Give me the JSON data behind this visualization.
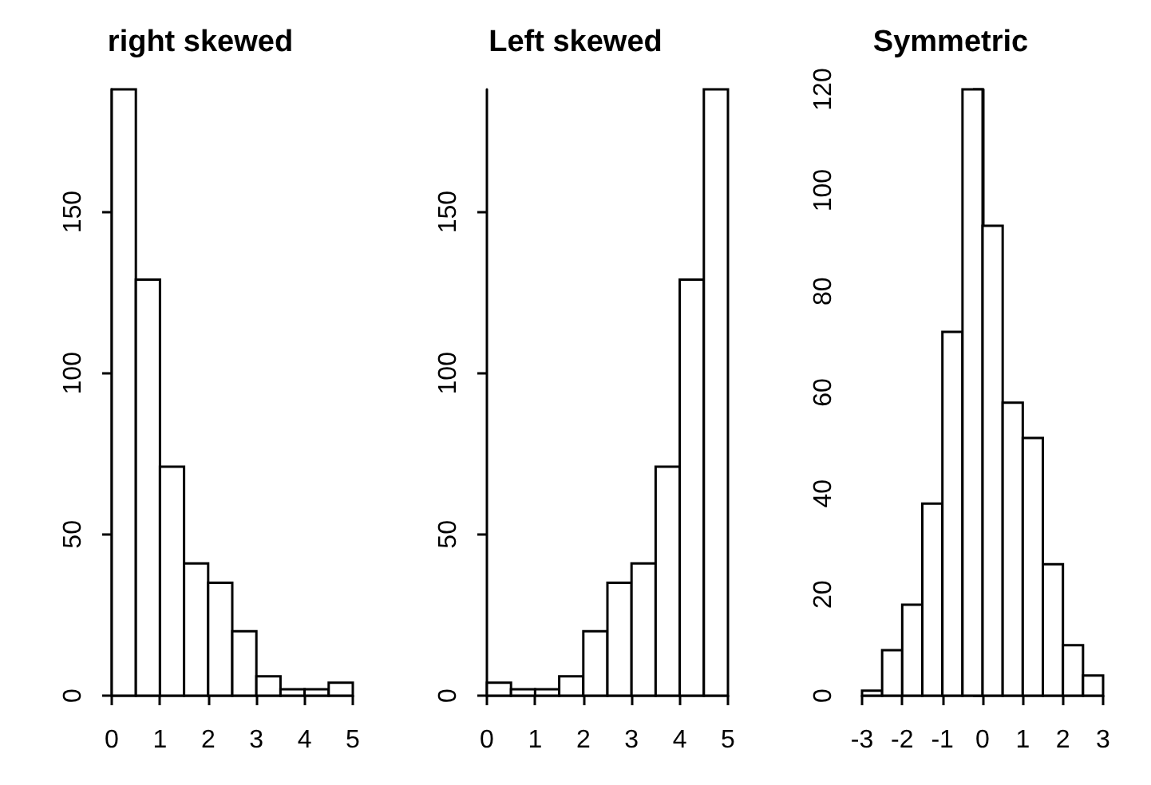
{
  "chart_data": [
    {
      "type": "histogram",
      "title": "right skewed",
      "color": "#ffffff",
      "bins": [
        0,
        0.5,
        1,
        1.5,
        2,
        2.5,
        3,
        3.5,
        4,
        4.5,
        5
      ],
      "values": [
        188,
        129,
        71,
        41,
        35,
        20,
        6,
        2,
        2,
        4
      ],
      "xlim": [
        0,
        5
      ],
      "ylim": [
        0,
        188
      ],
      "xticks": [
        0,
        1,
        2,
        3,
        4,
        5
      ],
      "yticks": [
        0,
        50,
        100,
        150
      ]
    },
    {
      "type": "histogram",
      "title": "Left skewed",
      "color": "#ffffff",
      "bins": [
        0,
        0.5,
        1,
        1.5,
        2,
        2.5,
        3,
        3.5,
        4,
        4.5,
        5
      ],
      "values": [
        4,
        2,
        2,
        6,
        20,
        35,
        41,
        71,
        129,
        188
      ],
      "xlim": [
        0,
        5
      ],
      "ylim": [
        0,
        188
      ],
      "xticks": [
        0,
        1,
        2,
        3,
        4,
        5
      ],
      "yticks": [
        0,
        50,
        100,
        150
      ]
    },
    {
      "type": "histogram",
      "title": "Symmetric",
      "color": "#ffffff",
      "bins": [
        -3,
        -2.5,
        -2,
        -1.5,
        -1,
        -0.5,
        0,
        0.5,
        1,
        1.5,
        2,
        2.5,
        3
      ],
      "values": [
        1,
        9,
        18,
        38,
        72,
        120,
        93,
        58,
        51,
        26,
        10,
        4
      ],
      "xlim": [
        -3,
        3
      ],
      "ylim": [
        0,
        120
      ],
      "xticks": [
        -3,
        -2,
        -1,
        0,
        1,
        2,
        3
      ],
      "yticks": [
        0,
        20,
        40,
        60,
        80,
        100,
        120
      ]
    }
  ]
}
